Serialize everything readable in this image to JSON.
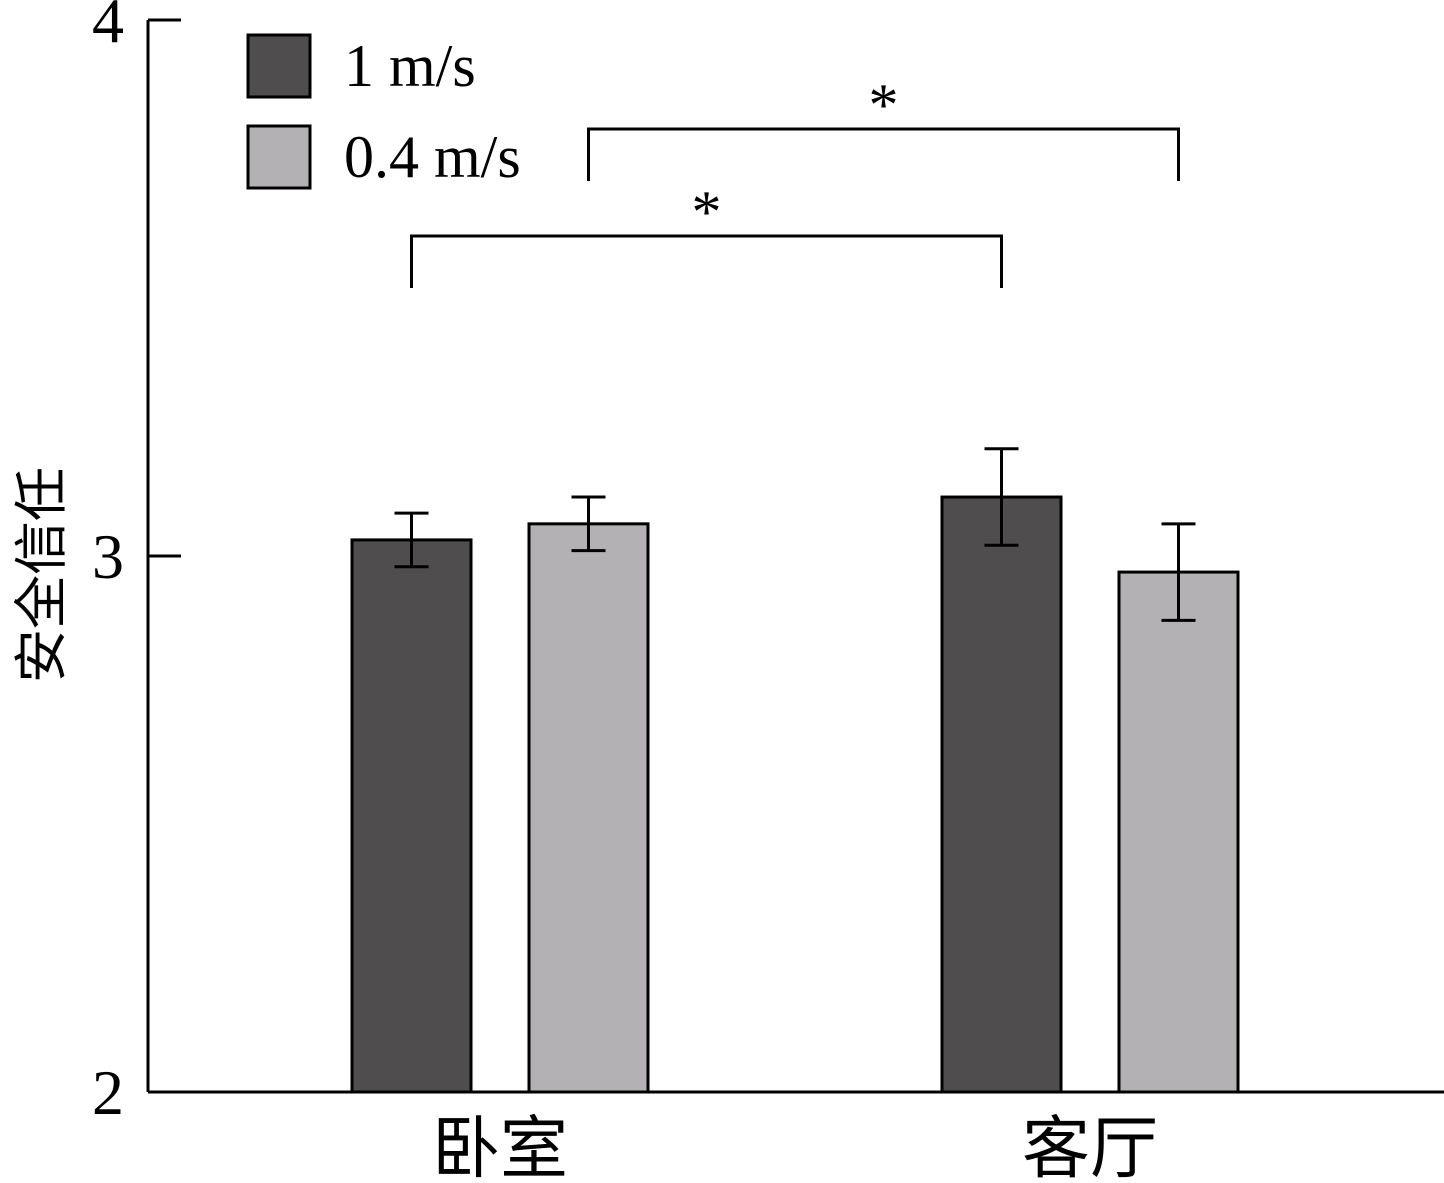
{
  "chart_data": {
    "type": "bar",
    "categories": [
      "卧室",
      "客厅"
    ],
    "series": [
      {
        "name": "1 m/s",
        "color": "#4f4d4e",
        "values": [
          3.03,
          3.11
        ],
        "error": [
          0.05,
          0.09
        ]
      },
      {
        "name": "0.4 m/s",
        "color": "#b3b1b4",
        "values": [
          3.06,
          2.97
        ],
        "error": [
          0.05,
          0.09
        ]
      }
    ],
    "ylabel": "安全信任",
    "xlabel": "",
    "ylim": [
      2,
      4
    ],
    "yticks": [
      {
        "value": 2,
        "label": "2"
      },
      {
        "value": 3,
        "label": "3"
      },
      {
        "value": 4,
        "label": "4"
      }
    ],
    "grid": false,
    "legend": "top-left",
    "significance": [
      {
        "from": {
          "category": 0,
          "series": 0
        },
        "to": {
          "category": 1,
          "series": 0
        },
        "label": "*"
      },
      {
        "from": {
          "category": 0,
          "series": 1
        },
        "to": {
          "category": 1,
          "series": 1
        },
        "label": "*"
      }
    ]
  }
}
